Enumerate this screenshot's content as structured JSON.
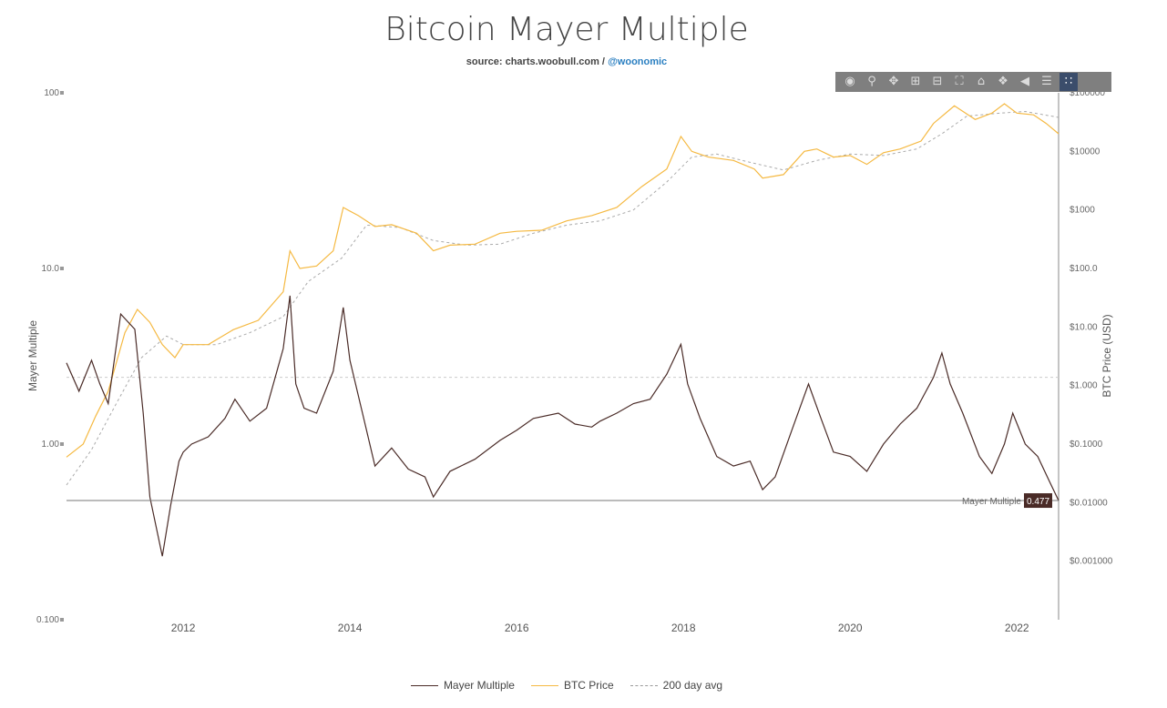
{
  "title": "Bitcoin Mayer Multiple",
  "subtitle": {
    "prefix": "source: charts.woobull.com / ",
    "link": "@woonomic"
  },
  "toolbar": {
    "icons": [
      "camera-icon",
      "zoom-icon",
      "pan-icon",
      "zoom-in-icon",
      "zoom-out-icon",
      "autoscale-icon",
      "reset-axes-icon",
      "spike-lines-icon",
      "hover-closest-icon",
      "hover-compare-icon",
      "plotly-logo-icon"
    ]
  },
  "legend": [
    {
      "label": "Mayer Multiple",
      "color": "#4a2b27"
    },
    {
      "label": "BTC Price",
      "color": "#f5b942"
    },
    {
      "label": "200 day avg",
      "color": "#999999"
    }
  ],
  "chart_data": {
    "type": "line",
    "title": "Bitcoin Mayer Multiple",
    "ylabel": "Mayer Multiple",
    "y2label": "BTC Price (USD)",
    "ylim": [
      0.1,
      100
    ],
    "y_scale": "log",
    "y2lim": [
      0.0001,
      100000
    ],
    "y2_scale": "log",
    "xlim": [
      2010.6,
      2022.5
    ],
    "x_ticks": [
      "2012",
      "2014",
      "2016",
      "2018",
      "2020",
      "2022"
    ],
    "x_tick_values": [
      2012,
      2014,
      2016,
      2018,
      2020,
      2022
    ],
    "y_ticks": [
      "0.100",
      "1.00",
      "10.0",
      "100"
    ],
    "y_tick_values": [
      0.1,
      1,
      10,
      100
    ],
    "y2_ticks": [
      "$0.001000",
      "$0.01000",
      "$0.1000",
      "$1.000",
      "$10.00",
      "$100.0",
      "$1000",
      "$10000",
      "$100000"
    ],
    "y2_tick_values": [
      0.001,
      0.01,
      0.1,
      1,
      10,
      100,
      1000,
      10000,
      100000
    ],
    "reference_line": {
      "label": "Mayer Multiple",
      "value": 0.477
    },
    "threshold_line": 2.4,
    "series": [
      {
        "name": "Mayer Multiple",
        "axis": "y",
        "x": [
          2010.6,
          2010.75,
          2010.9,
          2011.0,
          2011.1,
          2011.25,
          2011.42,
          2011.52,
          2011.6,
          2011.75,
          2011.85,
          2011.95,
          2012.0,
          2012.1,
          2012.3,
          2012.5,
          2012.62,
          2012.8,
          2013.0,
          2013.2,
          2013.28,
          2013.35,
          2013.45,
          2013.6,
          2013.8,
          2013.92,
          2014.0,
          2014.15,
          2014.3,
          2014.5,
          2014.7,
          2014.9,
          2015.0,
          2015.2,
          2015.5,
          2015.8,
          2016.0,
          2016.2,
          2016.5,
          2016.7,
          2016.9,
          2017.0,
          2017.2,
          2017.4,
          2017.6,
          2017.8,
          2017.97,
          2018.05,
          2018.2,
          2018.4,
          2018.6,
          2018.8,
          2018.95,
          2019.1,
          2019.3,
          2019.5,
          2019.65,
          2019.8,
          2020.0,
          2020.2,
          2020.4,
          2020.6,
          2020.8,
          2021.0,
          2021.1,
          2021.2,
          2021.35,
          2021.55,
          2021.7,
          2021.85,
          2021.95,
          2022.1,
          2022.25,
          2022.4,
          2022.5
        ],
        "values": [
          2.9,
          2.0,
          3.0,
          2.2,
          1.7,
          5.5,
          4.5,
          1.5,
          0.5,
          0.23,
          0.45,
          0.8,
          0.9,
          1.0,
          1.1,
          1.4,
          1.8,
          1.35,
          1.6,
          3.5,
          7.0,
          2.2,
          1.6,
          1.5,
          2.6,
          6.0,
          3.0,
          1.5,
          0.75,
          0.95,
          0.72,
          0.65,
          0.5,
          0.7,
          0.82,
          1.05,
          1.2,
          1.4,
          1.5,
          1.3,
          1.25,
          1.35,
          1.5,
          1.7,
          1.8,
          2.5,
          3.7,
          2.2,
          1.4,
          0.85,
          0.75,
          0.8,
          0.55,
          0.65,
          1.2,
          2.2,
          1.4,
          0.9,
          0.85,
          0.7,
          1.0,
          1.3,
          1.6,
          2.4,
          3.3,
          2.2,
          1.5,
          0.85,
          0.68,
          1.0,
          1.5,
          1.0,
          0.85,
          0.6,
          0.477
        ]
      },
      {
        "name": "BTC Price",
        "axis": "y2",
        "x": [
          2010.6,
          2010.8,
          2010.95,
          2011.1,
          2011.3,
          2011.45,
          2011.6,
          2011.75,
          2011.9,
          2012.0,
          2012.3,
          2012.6,
          2012.9,
          2013.2,
          2013.28,
          2013.4,
          2013.6,
          2013.8,
          2013.92,
          2014.1,
          2014.3,
          2014.5,
          2014.8,
          2015.0,
          2015.2,
          2015.5,
          2015.8,
          2016.0,
          2016.3,
          2016.6,
          2016.9,
          2017.2,
          2017.5,
          2017.8,
          2017.97,
          2018.1,
          2018.3,
          2018.6,
          2018.85,
          2018.95,
          2019.2,
          2019.45,
          2019.6,
          2019.8,
          2020.0,
          2020.2,
          2020.4,
          2020.6,
          2020.85,
          2021.0,
          2021.25,
          2021.5,
          2021.7,
          2021.85,
          2022.0,
          2022.2,
          2022.35,
          2022.5
        ],
        "values": [
          0.06,
          0.1,
          0.3,
          0.8,
          8,
          20,
          12,
          5,
          3,
          5,
          5,
          9,
          13,
          40,
          200,
          100,
          110,
          200,
          1100,
          800,
          520,
          560,
          400,
          200,
          250,
          260,
          400,
          430,
          450,
          650,
          800,
          1100,
          2500,
          5000,
          18000,
          10000,
          8000,
          7000,
          5000,
          3500,
          4000,
          10000,
          11000,
          8000,
          8500,
          6000,
          9500,
          11000,
          15000,
          30000,
          60000,
          35000,
          45000,
          65000,
          45000,
          42000,
          30000,
          20000
        ]
      },
      {
        "name": "200 day avg",
        "axis": "y2",
        "x": [
          2010.6,
          2010.9,
          2011.2,
          2011.5,
          2011.8,
          2012.0,
          2012.4,
          2012.8,
          2013.2,
          2013.5,
          2013.9,
          2014.2,
          2014.6,
          2015.0,
          2015.4,
          2015.8,
          2016.2,
          2016.6,
          2017.0,
          2017.4,
          2017.8,
          2018.1,
          2018.4,
          2018.8,
          2019.2,
          2019.6,
          2020.0,
          2020.4,
          2020.8,
          2021.1,
          2021.4,
          2021.8,
          2022.1,
          2022.5
        ],
        "values": [
          0.02,
          0.08,
          0.5,
          3,
          7,
          5,
          5,
          8,
          15,
          60,
          150,
          550,
          500,
          300,
          250,
          260,
          400,
          550,
          650,
          1000,
          3000,
          8000,
          9000,
          6500,
          4800,
          7000,
          9000,
          8500,
          11000,
          20000,
          40000,
          45000,
          48000,
          38000
        ]
      }
    ]
  }
}
